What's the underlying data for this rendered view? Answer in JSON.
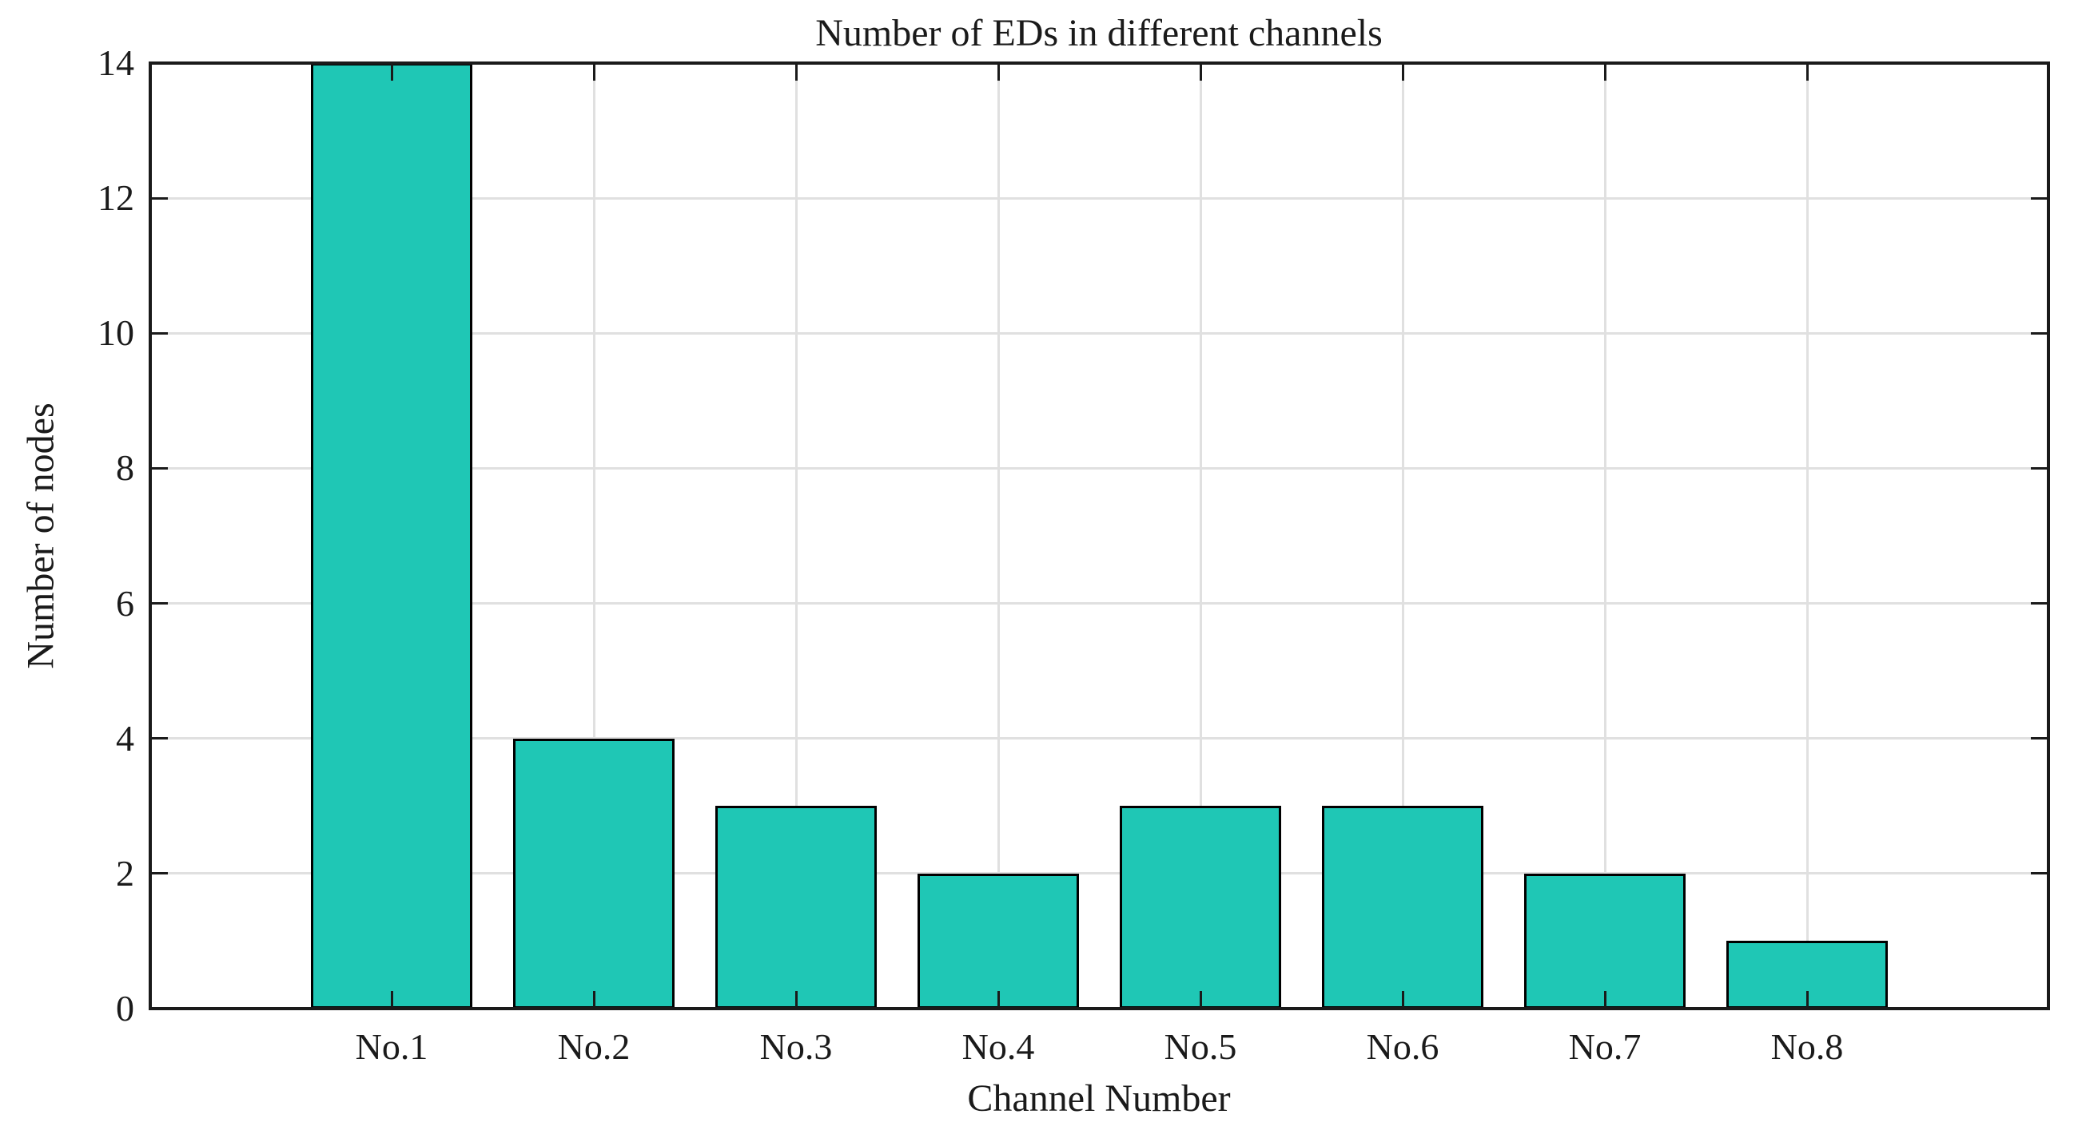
{
  "chart_data": {
    "type": "bar",
    "title": "Number of EDs in different channels",
    "xlabel": "Channel Number",
    "ylabel": "Number of nodes",
    "categories": [
      "No.1",
      "No.2",
      "No.3",
      "No.4",
      "No.5",
      "No.6",
      "No.7",
      "No.8"
    ],
    "values": [
      14,
      4,
      3,
      2,
      3,
      3,
      2,
      1
    ],
    "ylim": [
      0,
      14
    ],
    "yticks": [
      0,
      2,
      4,
      6,
      8,
      10,
      12,
      14
    ],
    "ytick_labels": [
      "0",
      "2",
      "4",
      "6",
      "8",
      "10",
      "12",
      "14"
    ],
    "grid": "on",
    "grid_lines": "horizontal at yticks, vertical at category centers",
    "legend_position": "none",
    "tick_direction": "in",
    "colors": {
      "bar_fill": "#1fc7b5",
      "bar_edge": "#000000",
      "axis": "#1a1a1a",
      "grid": "#e0e0e0",
      "text": "#1a1a1a",
      "background": "#ffffff"
    }
  }
}
